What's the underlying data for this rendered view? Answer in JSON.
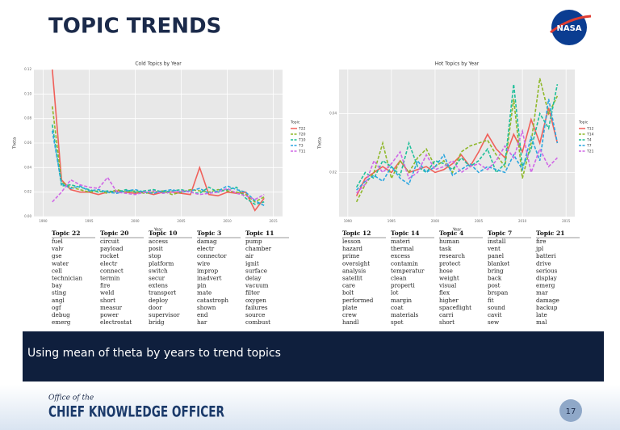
{
  "header": {
    "title": "TOPIC TRENDS",
    "logo": "NASA"
  },
  "chart_data": [
    {
      "type": "line",
      "title": "Cold Topics by Year",
      "x_label": "Year",
      "y_label": "Theta",
      "legend_title": "Topic",
      "legend": "right",
      "grid": true,
      "x": [
        1991,
        1992,
        1993,
        1994,
        1995,
        1996,
        1997,
        1998,
        1999,
        2000,
        2001,
        2002,
        2003,
        2004,
        2005,
        2006,
        2007,
        2008,
        2009,
        2010,
        2011,
        2012,
        2013,
        2014
      ],
      "xlim": [
        1989,
        2016
      ],
      "xticks": [
        1990,
        1995,
        2000,
        2005,
        2010,
        2015
      ],
      "ylim": [
        0,
        0.12
      ],
      "yticks": [
        {
          "value": 0,
          "label": "0.00"
        },
        {
          "value": 0.02,
          "label": "0.02"
        },
        {
          "value": 0.04,
          "label": "0.04"
        },
        {
          "value": 0.06,
          "label": "0.06"
        },
        {
          "value": 0.08,
          "label": "0.08"
        },
        {
          "value": 0.1,
          "label": "0.10"
        },
        {
          "value": 0.12,
          "label": "0.12"
        }
      ],
      "series": [
        {
          "name": "T22",
          "color": "#f0605a",
          "dash": false,
          "values": [
            0.12,
            0.03,
            0.022,
            0.02,
            0.02,
            0.018,
            0.02,
            0.021,
            0.02,
            0.019,
            0.02,
            0.018,
            0.02,
            0.02,
            0.019,
            0.018,
            0.04,
            0.018,
            0.017,
            0.02,
            0.019,
            0.02,
            0.005,
            0.015
          ]
        },
        {
          "name": "T20",
          "color": "#8fb82a",
          "dash": true,
          "values": [
            0.09,
            0.028,
            0.024,
            0.022,
            0.02,
            0.021,
            0.019,
            0.022,
            0.02,
            0.021,
            0.019,
            0.02,
            0.021,
            0.018,
            0.02,
            0.022,
            0.021,
            0.02,
            0.022,
            0.021,
            0.02,
            0.018,
            0.012,
            0.016
          ]
        },
        {
          "name": "T10",
          "color": "#1fbf9a",
          "dash": true,
          "values": [
            0.075,
            0.025,
            0.026,
            0.024,
            0.022,
            0.02,
            0.021,
            0.02,
            0.022,
            0.02,
            0.021,
            0.022,
            0.02,
            0.021,
            0.022,
            0.02,
            0.019,
            0.024,
            0.02,
            0.022,
            0.024,
            0.015,
            0.01,
            0.012
          ]
        },
        {
          "name": "T3",
          "color": "#2aa6e0",
          "dash": true,
          "values": [
            0.07,
            0.027,
            0.023,
            0.025,
            0.021,
            0.022,
            0.02,
            0.019,
            0.021,
            0.022,
            0.02,
            0.019,
            0.021,
            0.022,
            0.02,
            0.021,
            0.023,
            0.019,
            0.021,
            0.025,
            0.022,
            0.02,
            0.013,
            0.009
          ]
        },
        {
          "name": "T11",
          "color": "#d068e6",
          "dash": true,
          "values": [
            0.012,
            0.02,
            0.03,
            0.026,
            0.024,
            0.023,
            0.032,
            0.02,
            0.019,
            0.018,
            0.02,
            0.021,
            0.019,
            0.02,
            0.021,
            0.02,
            0.018,
            0.019,
            0.02,
            0.023,
            0.019,
            0.017,
            0.014,
            0.018
          ]
        }
      ]
    },
    {
      "type": "line",
      "title": "Hot Topics by Year",
      "x_label": "Year",
      "y_label": "Theta",
      "legend_title": "Topic",
      "legend": "right",
      "grid": true,
      "x": [
        1991,
        1992,
        1993,
        1994,
        1995,
        1996,
        1997,
        1998,
        1999,
        2000,
        2001,
        2002,
        2003,
        2004,
        2005,
        2006,
        2007,
        2008,
        2009,
        2010,
        2011,
        2012,
        2013,
        2014
      ],
      "xlim": [
        1989,
        2016
      ],
      "xticks": [
        1990,
        1995,
        2000,
        2005,
        2010,
        2015
      ],
      "ylim": [
        0.005,
        0.055
      ],
      "yticks": [
        {
          "value": 0.02,
          "label": "0.02"
        },
        {
          "value": 0.04,
          "label": "0.04"
        }
      ],
      "series": [
        {
          "name": "T12",
          "color": "#f0605a",
          "dash": false,
          "values": [
            0.012,
            0.018,
            0.02,
            0.022,
            0.02,
            0.024,
            0.02,
            0.021,
            0.022,
            0.02,
            0.021,
            0.023,
            0.026,
            0.022,
            0.027,
            0.033,
            0.028,
            0.025,
            0.033,
            0.027,
            0.038,
            0.03,
            0.042,
            0.03
          ]
        },
        {
          "name": "T14",
          "color": "#8fb82a",
          "dash": true,
          "values": [
            0.01,
            0.016,
            0.02,
            0.03,
            0.018,
            0.024,
            0.02,
            0.025,
            0.028,
            0.022,
            0.024,
            0.02,
            0.027,
            0.029,
            0.03,
            0.031,
            0.026,
            0.022,
            0.045,
            0.018,
            0.03,
            0.052,
            0.04,
            0.046
          ]
        },
        {
          "name": "T4",
          "color": "#1fbf9a",
          "dash": true,
          "values": [
            0.015,
            0.02,
            0.018,
            0.024,
            0.022,
            0.019,
            0.03,
            0.022,
            0.02,
            0.024,
            0.023,
            0.021,
            0.025,
            0.022,
            0.024,
            0.028,
            0.02,
            0.023,
            0.05,
            0.022,
            0.028,
            0.04,
            0.035,
            0.05
          ]
        },
        {
          "name": "T7",
          "color": "#2aa6e0",
          "dash": true,
          "values": [
            0.014,
            0.017,
            0.019,
            0.017,
            0.022,
            0.018,
            0.016,
            0.024,
            0.02,
            0.022,
            0.026,
            0.019,
            0.021,
            0.023,
            0.02,
            0.022,
            0.021,
            0.02,
            0.026,
            0.021,
            0.032,
            0.024,
            0.045,
            0.03
          ]
        },
        {
          "name": "T21",
          "color": "#d068e6",
          "dash": true,
          "values": [
            0.013,
            0.016,
            0.024,
            0.02,
            0.023,
            0.027,
            0.018,
            0.02,
            0.026,
            0.021,
            0.022,
            0.024,
            0.02,
            0.022,
            0.023,
            0.021,
            0.024,
            0.029,
            0.025,
            0.034,
            0.02,
            0.028,
            0.022,
            0.025
          ]
        }
      ]
    }
  ],
  "tables": [
    {
      "columns": [
        {
          "header": "Topic 22",
          "words": [
            "fuel",
            "valv",
            "gse",
            "water",
            "cell",
            "technician",
            "bay",
            "sting",
            "angl",
            "ogf",
            "debug",
            "emerg"
          ]
        },
        {
          "header": "Topic 20",
          "words": [
            "circuit",
            "payload",
            "rocket",
            "electr",
            "connect",
            "termin",
            "fire",
            "weld",
            "short",
            "measur",
            "power",
            "electrostat"
          ]
        },
        {
          "header": "Topic 10",
          "words": [
            "access",
            "posit",
            "stop",
            "platform",
            "switch",
            "secur",
            "extens",
            "transport",
            "deploy",
            "door",
            "supervisor",
            "bridg"
          ]
        },
        {
          "header": "Topic 3",
          "words": [
            "damag",
            "electr",
            "connector",
            "wire",
            "improp",
            "inadvert",
            "pin",
            "mate",
            "catastroph",
            "shown",
            "end",
            "har"
          ]
        },
        {
          "header": "Topic 11",
          "words": [
            "pump",
            "chamber",
            "air",
            "ignit",
            "surface",
            "delay",
            "vacuum",
            "filter",
            "oxygen",
            "failures",
            "source",
            "combust"
          ]
        }
      ]
    },
    {
      "columns": [
        {
          "header": "Topic 12",
          "words": [
            "lesson",
            "hazard",
            "prime",
            "oversight",
            "analysis",
            "satellit",
            "care",
            "bolt",
            "performed",
            "plate",
            "crew",
            "handl"
          ]
        },
        {
          "header": "Topic 14",
          "words": [
            "materi",
            "thermal",
            "excess",
            "contamin",
            "temperatur",
            "clean",
            "properti",
            "lot",
            "margin",
            "coat",
            "materials",
            "spot"
          ]
        },
        {
          "header": "Topic 4",
          "words": [
            "human",
            "task",
            "research",
            "protect",
            "hose",
            "weight",
            "visual",
            "flex",
            "higher",
            "spaceflight",
            "carri",
            "short"
          ]
        },
        {
          "header": "Topic 7",
          "words": [
            "install",
            "vent",
            "panel",
            "blanket",
            "bring",
            "back",
            "post",
            "brspan",
            "fit",
            "sound",
            "cavit",
            "sew"
          ]
        },
        {
          "header": "Topic 21",
          "words": [
            "fire",
            "jpl",
            "batteri",
            "drive",
            "serious",
            "display",
            "emerg",
            "mar",
            "damage",
            "backup",
            "late",
            "mal"
          ]
        }
      ]
    }
  ],
  "caption": "Using mean of theta by years to trend topics",
  "footer": {
    "office": "Office of the",
    "name": "CHIEF KNOWLEDGE OFFICER",
    "page": "17"
  }
}
